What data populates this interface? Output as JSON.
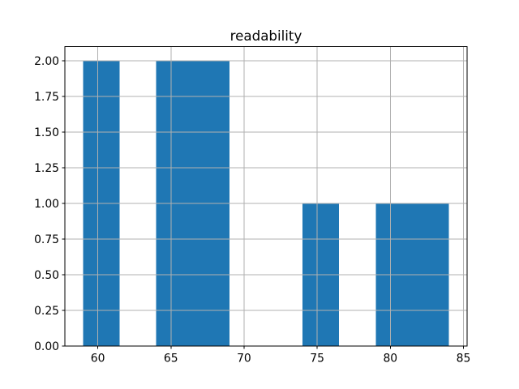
{
  "figure": {
    "background": "#ffffff"
  },
  "chart_data": {
    "type": "bar",
    "subtype": "histogram",
    "title": "readability",
    "xlabel": "",
    "ylabel": "",
    "grid": true,
    "legend": false,
    "bar_color": "#1f77b4",
    "grid_color": "#b0b0b0",
    "spine_color": "#000000",
    "tick_color": "#000000",
    "xlim": [
      57.75,
      85.25
    ],
    "ylim": [
      0,
      2.1
    ],
    "bin_edges": [
      59,
      61.5,
      64,
      66.5,
      69,
      71.5,
      74,
      76.5,
      79,
      81.5,
      84
    ],
    "counts": [
      2,
      0,
      2,
      2,
      0,
      0,
      1,
      0,
      1,
      1
    ],
    "x_ticks": [
      {
        "value": 60,
        "label": "60"
      },
      {
        "value": 65,
        "label": "65"
      },
      {
        "value": 70,
        "label": "70"
      },
      {
        "value": 75,
        "label": "75"
      },
      {
        "value": 80,
        "label": "80"
      },
      {
        "value": 85,
        "label": "85"
      }
    ],
    "y_ticks": [
      {
        "value": 0.0,
        "label": "0.00"
      },
      {
        "value": 0.25,
        "label": "0.25"
      },
      {
        "value": 0.5,
        "label": "0.50"
      },
      {
        "value": 0.75,
        "label": "0.75"
      },
      {
        "value": 1.0,
        "label": "1.00"
      },
      {
        "value": 1.25,
        "label": "1.25"
      },
      {
        "value": 1.5,
        "label": "1.50"
      },
      {
        "value": 1.75,
        "label": "1.75"
      },
      {
        "value": 2.0,
        "label": "2.00"
      }
    ]
  }
}
